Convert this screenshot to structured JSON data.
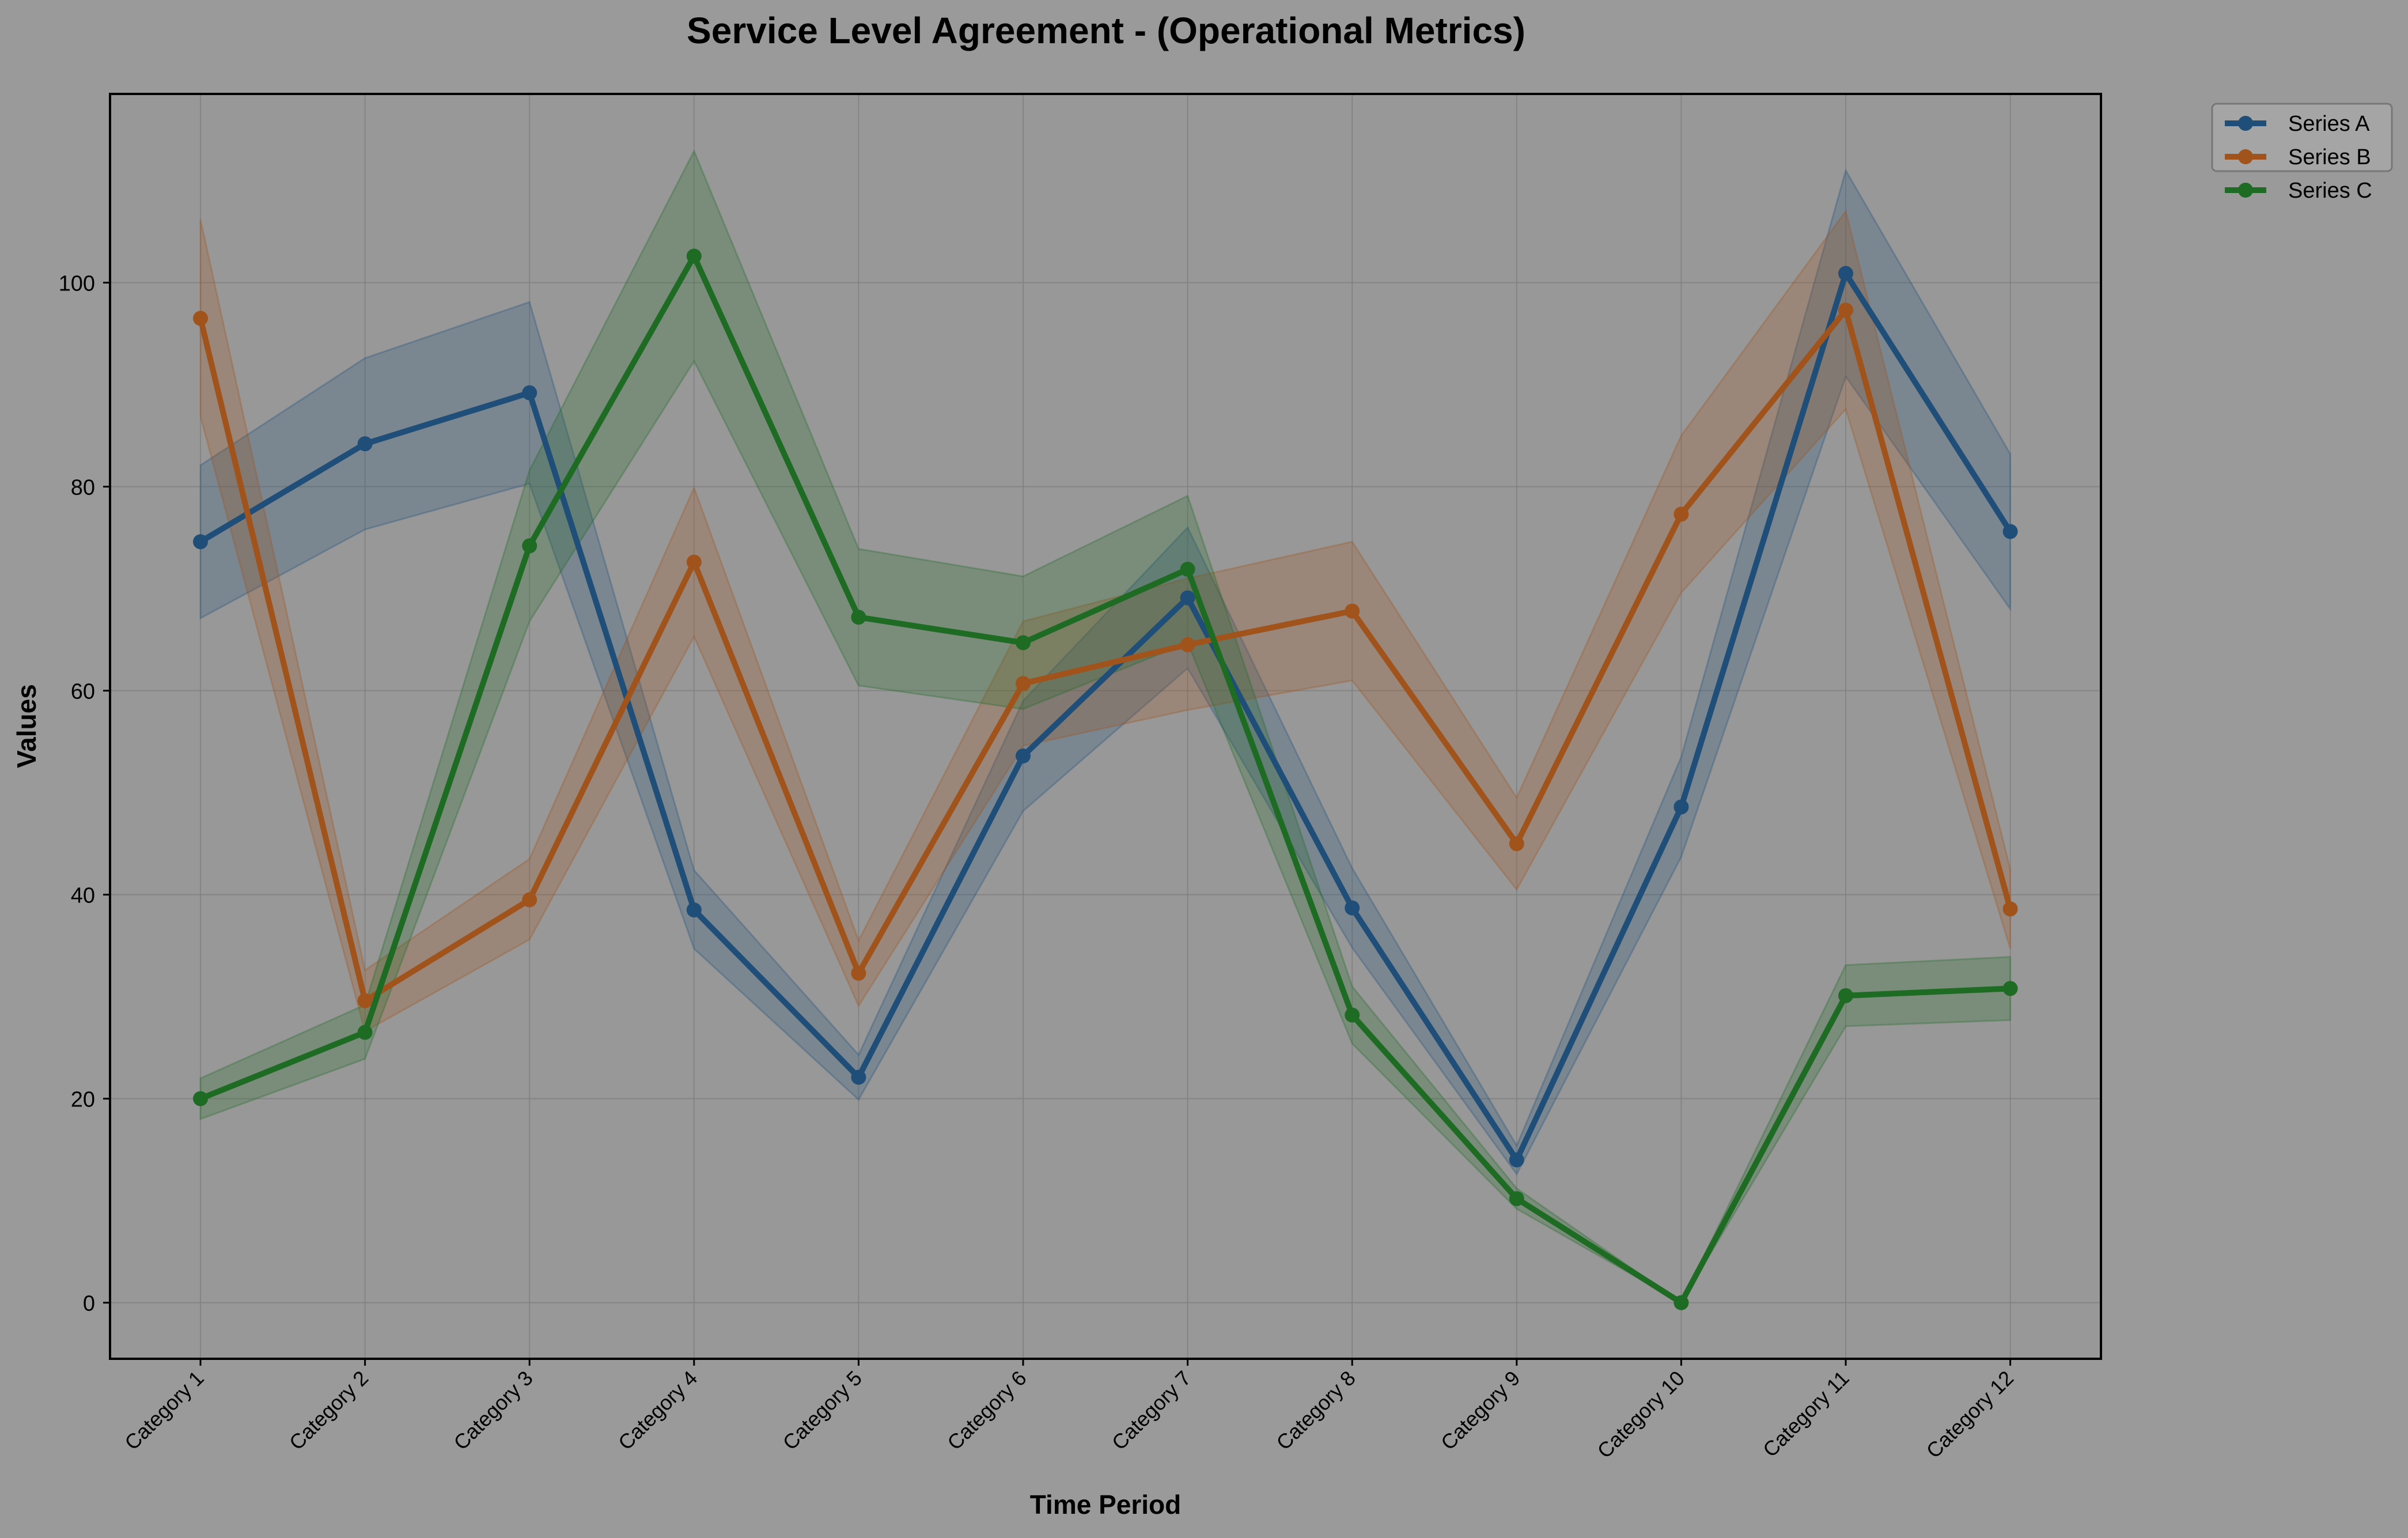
{
  "chart_data": {
    "type": "line",
    "title": "Service Level Agreement - (Operational Metrics)",
    "xlabel": "Time Period",
    "ylabel": "Values",
    "ylim": [
      -5.5,
      118.5
    ],
    "yticks": [
      0,
      20,
      40,
      60,
      80,
      100
    ],
    "grid": true,
    "legend_position": "outside top-right",
    "categories": [
      "Category 1",
      "Category 2",
      "Category 3",
      "Category 4",
      "Category 5",
      "Category 6",
      "Category 7",
      "Category 8",
      "Category 9",
      "Category 10",
      "Category 11",
      "Category 12"
    ],
    "series": [
      {
        "name": "Series A",
        "color": "#1f4e79",
        "values": [
          74.6,
          84.2,
          89.2,
          38.5,
          22.1,
          53.6,
          69.1,
          38.7,
          14.0,
          48.6,
          100.9,
          75.6
        ],
        "upper": [
          82.1,
          92.6,
          98.1,
          42.4,
          24.3,
          59.0,
          76.0,
          42.6,
          15.4,
          53.5,
          111.0,
          83.2
        ],
        "lower": [
          67.1,
          75.8,
          80.3,
          34.7,
          19.9,
          48.2,
          62.2,
          34.8,
          12.6,
          43.7,
          90.8,
          68.0
        ]
      },
      {
        "name": "Series B",
        "color": "#a0531a",
        "values": [
          96.5,
          29.6,
          39.5,
          72.6,
          32.3,
          60.7,
          64.5,
          67.8,
          45.0,
          77.3,
          97.3,
          38.6
        ],
        "upper": [
          106.2,
          32.6,
          43.5,
          79.9,
          35.5,
          66.8,
          71.0,
          74.6,
          49.5,
          85.0,
          107.0,
          42.5
        ],
        "lower": [
          86.9,
          26.6,
          35.6,
          65.3,
          29.1,
          54.6,
          58.1,
          61.0,
          40.5,
          69.6,
          87.6,
          34.7
        ]
      },
      {
        "name": "Series C",
        "color": "#1e6b24",
        "values": [
          20.0,
          26.5,
          74.2,
          102.6,
          67.2,
          64.7,
          71.9,
          28.2,
          10.2,
          0.0,
          30.1,
          30.8
        ],
        "upper": [
          22.0,
          29.2,
          81.6,
          112.9,
          73.9,
          71.2,
          79.1,
          31.0,
          11.2,
          0.0,
          33.1,
          33.9
        ],
        "lower": [
          18.0,
          23.9,
          66.8,
          92.3,
          60.5,
          58.2,
          64.7,
          25.4,
          9.2,
          0.0,
          27.1,
          27.7
        ]
      }
    ]
  }
}
